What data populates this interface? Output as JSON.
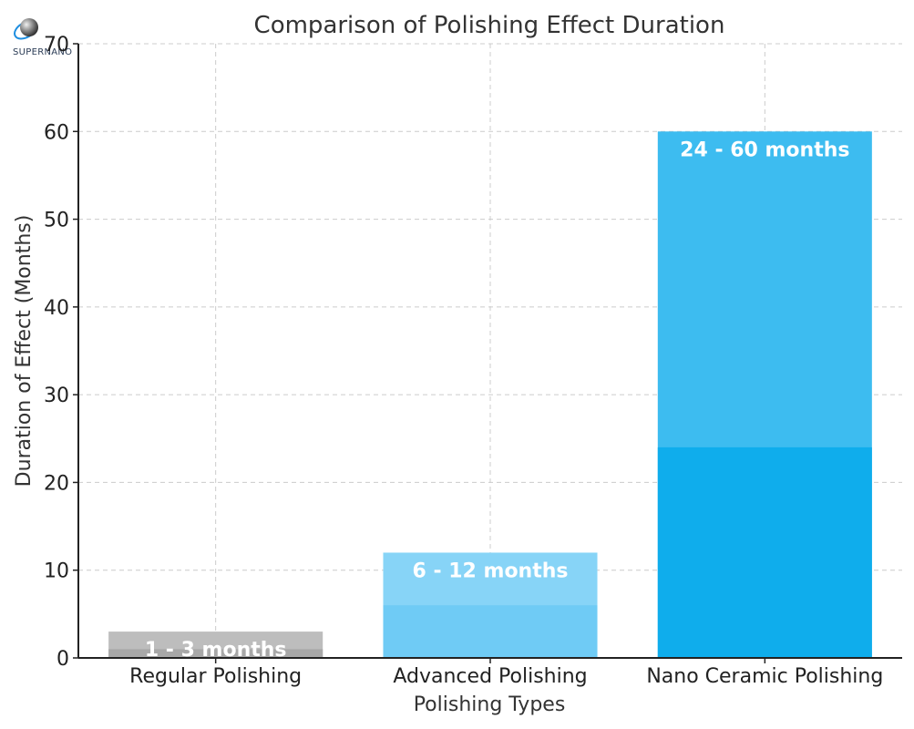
{
  "logo": {
    "text": "SUPERNANO"
  },
  "chart_data": {
    "type": "bar",
    "title": "Comparison of Polishing Effect Duration",
    "xlabel": "Polishing Types",
    "ylabel": "Duration of Effect (Months)",
    "ylim": [
      0,
      70
    ],
    "yticks": [
      0,
      10,
      20,
      30,
      40,
      50,
      60,
      70
    ],
    "grid": true,
    "categories": [
      "Regular Polishing",
      "Advanced Polishing",
      "Nano Ceramic Polishing"
    ],
    "ranges": [
      {
        "min": 1,
        "max": 3,
        "label": "1 - 3 months",
        "color": "#bdbdbd",
        "min_color": "#a8a8a8"
      },
      {
        "min": 6,
        "max": 12,
        "label": "6 - 12 months",
        "color": "#87d4f7",
        "min_color": "#6fcbf5"
      },
      {
        "min": 24,
        "max": 60,
        "label": "24 - 60 months",
        "color": "#3dbcf0",
        "min_color": "#0fadec"
      }
    ]
  }
}
